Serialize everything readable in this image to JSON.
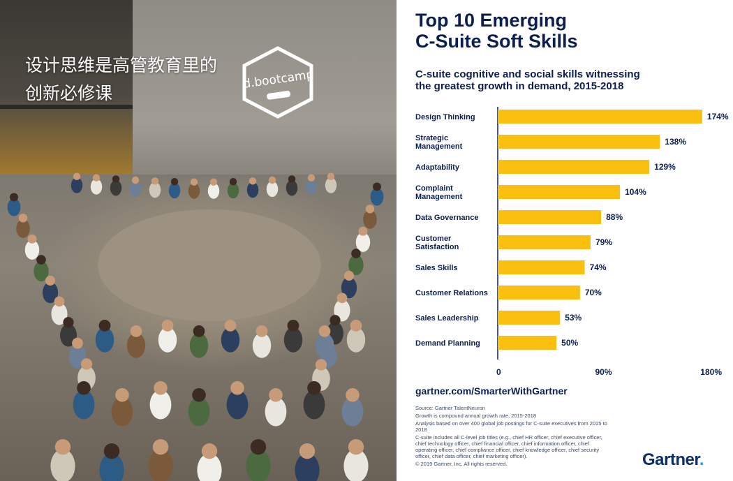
{
  "photo": {
    "caption_lines": [
      "设计思维是高管教育里的",
      "创新必修课"
    ],
    "logo_text": "d.bootcamp"
  },
  "infographic": {
    "title_line1": "Top 10 Emerging",
    "title_line2": "C-Suite Soft Skills",
    "subtitle_line1": "C-suite cognitive and social skills witnessing",
    "subtitle_line2": "the greatest growth in demand, 2015-2018",
    "url": "gartner.com/SmarterWithGartner",
    "notes": [
      "Source: Gartner TalentNeuron",
      "Growth is compound annual growth rate, 2015-2018",
      "Analysis based on over 400 global job postings for C-suite executives from 2015 to 2018",
      "C-suite includes all C-level job titles (e.g., chief HR officer, chief executive officer, chief technology officer, chief financial officer, chief information officer, chief operating officer, chief compliance officer, chief knowledge officer, chief security officer, chief data officer, chief marketing officer).",
      "© 2019 Gartner, Inc. All rights reserved."
    ],
    "brand": "Gartner",
    "brand_dot": "."
  },
  "chart_data": {
    "type": "bar",
    "orientation": "horizontal",
    "categories": [
      [
        "Design Thinking"
      ],
      [
        "Strategic",
        "Management"
      ],
      [
        "Adaptability"
      ],
      [
        "Complaint",
        "Management"
      ],
      [
        "Data Governance"
      ],
      [
        "Customer",
        "Satisfaction"
      ],
      [
        "Sales Skills"
      ],
      [
        "Customer Relations"
      ],
      [
        "Sales Leadership"
      ],
      [
        "Demand Planning"
      ]
    ],
    "values": [
      174,
      138,
      129,
      104,
      88,
      79,
      74,
      70,
      53,
      50
    ],
    "value_labels": [
      "174%",
      "138%",
      "129%",
      "104%",
      "88%",
      "79%",
      "74%",
      "70%",
      "53%",
      "50%"
    ],
    "xlim": [
      0,
      180
    ],
    "xticks": [
      0,
      90,
      180
    ],
    "xtick_labels": [
      "0",
      "90%",
      "180%"
    ],
    "bar_color": "#fbbf0f",
    "axis_color": "#0b1e50",
    "title": "C-suite cognitive and social skills witnessing the greatest growth in demand, 2015-2018"
  }
}
